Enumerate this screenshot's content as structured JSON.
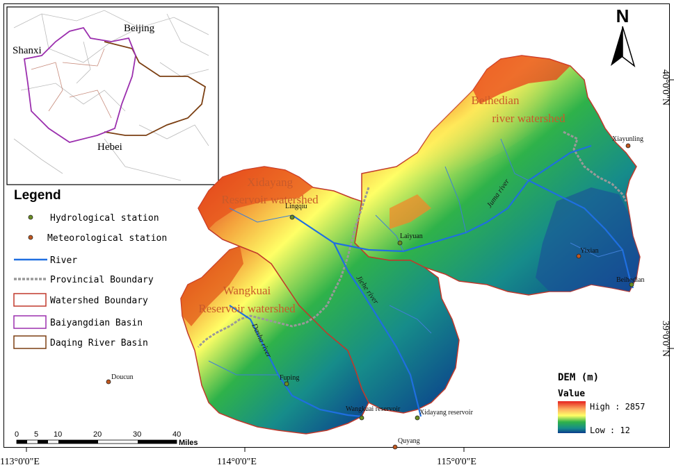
{
  "colors": {
    "dem_high": "#d7191c",
    "dem_mid_high": "#fdae61",
    "dem_mid": "#ffff66",
    "dem_mid_low": "#1a9641",
    "dem_low": "#0b3a8c",
    "river": "#1f6fe0",
    "watershed_boundary": "#c0392b",
    "baiyangdian_basin": "#9b2fae",
    "daqing_basin": "#7b3f12",
    "provincial_boundary": "#999999",
    "hydro_station": "#6b8e23",
    "met_station": "#c0571f"
  },
  "inset": {
    "labels": {
      "beijing": "Beijing",
      "shanxi": "Shanxi",
      "hebei": "Hebei"
    }
  },
  "north": {
    "label": "N",
    "icon": "north-arrow-icon"
  },
  "graticule": {
    "lat_top": "40°0'0\"N",
    "lat_bottom": "39°0'0\"N",
    "lon_1": "113°0'0\"E",
    "lon_2": "114°0'0\"E",
    "lon_3": "115°0'0\"E"
  },
  "legend": {
    "title": "Legend",
    "items": [
      {
        "label": "Hydrological station",
        "symbol": "hydro-station-icon"
      },
      {
        "label": "Meteorological station",
        "symbol": "met-station-icon"
      },
      {
        "label": "River",
        "symbol": "river-line-icon"
      },
      {
        "label": "Provincial Boundary",
        "symbol": "provincial-boundary-icon"
      },
      {
        "label": "Watershed Boundary",
        "symbol": "watershed-boundary-icon"
      },
      {
        "label": "Baiyangdian Basin",
        "symbol": "baiyangdian-basin-icon"
      },
      {
        "label": "Daqing River Basin",
        "symbol": "daqing-basin-icon"
      }
    ]
  },
  "dem": {
    "title": "DEM (m)",
    "value_label": "Value",
    "high_label": "High : 2857",
    "low_label": "Low : 12",
    "high": 2857,
    "low": 12
  },
  "scale_bar": {
    "ticks": [
      "0",
      "5",
      "10",
      "20",
      "30",
      "40"
    ],
    "unit": "Miles"
  },
  "watersheds": {
    "beihedian": [
      "Beihedian",
      "river watershed"
    ],
    "xidayang": [
      "Xidayang",
      "Reservoir watershed"
    ],
    "wangkuai": [
      "Wangkuai",
      "Reservoir watershed"
    ]
  },
  "rivers": {
    "juma": "Juma river",
    "jiehe": "Jiehe river",
    "dasha": "Dasha river"
  },
  "stations": {
    "hydro": [
      "Lingqiu",
      "Laiyuan",
      "Fuping",
      "Beihedian",
      "Wangkuai reservoir",
      "Xidayang reservoir"
    ],
    "met": [
      "Xiayunling",
      "Yixian",
      "Doucun",
      "Quyang"
    ]
  }
}
